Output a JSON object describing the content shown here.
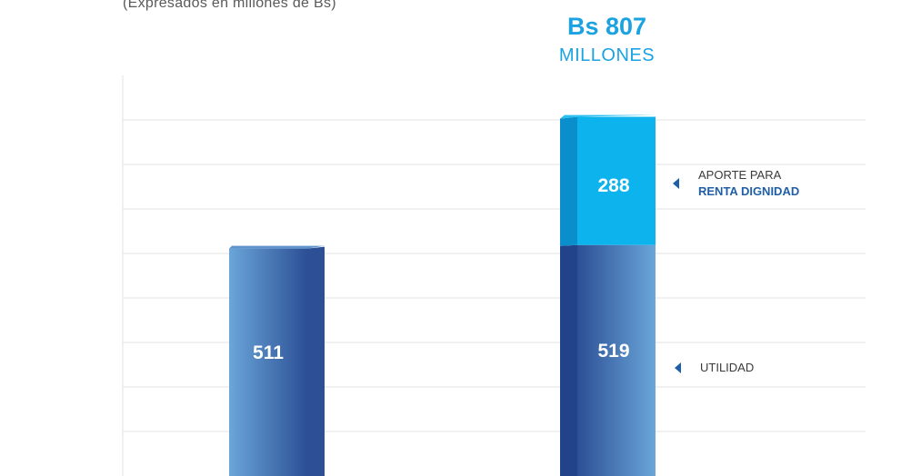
{
  "header": {
    "subtitle": "(Expresados en millones de Bs)",
    "total_value": "Bs 807",
    "total_unit": "MILLONES"
  },
  "legend": {
    "aporte_line1": "APORTE PARA",
    "aporte_line2": "RENTA DIGNIDAD",
    "utilidad": "UTILIDAD"
  },
  "chart_data": {
    "type": "bar",
    "stacked": true,
    "categories": [
      "",
      ""
    ],
    "series": [
      {
        "name": "UTILIDAD",
        "values": [
          511,
          519
        ],
        "color": "#4a7fbf"
      },
      {
        "name": "APORTE PARA RENTA DIGNIDAD",
        "values": [
          0,
          288
        ],
        "color": "#0db3ec"
      }
    ],
    "data_labels": [
      "511",
      "519",
      "288"
    ],
    "ylim": [
      0,
      1000
    ],
    "grid": true,
    "colors": {
      "bar_dark": "#2c4f95",
      "bar_light": "#6aa6d9",
      "aporte": "#0db3ec",
      "accent_text": "#1aa3e0",
      "grid": "#e3e3e3"
    }
  }
}
